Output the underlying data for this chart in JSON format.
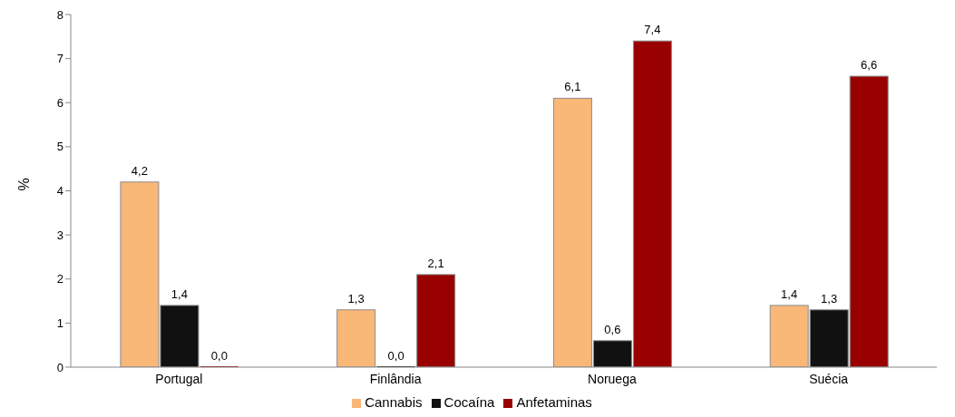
{
  "chart_data": {
    "type": "bar",
    "ylabel": "%",
    "categories": [
      "Portugal",
      "Finlândia",
      "Noruega",
      "Suécia"
    ],
    "series": [
      {
        "name": "Cannabis",
        "color": "#f9b778",
        "values": [
          4.2,
          1.3,
          6.1,
          1.4
        ],
        "value_labels": [
          "4,2",
          "1,3",
          "6,1",
          "1,4"
        ]
      },
      {
        "name": "Cocaína",
        "color": "#111111",
        "values": [
          1.4,
          0.0,
          0.6,
          1.3
        ],
        "value_labels": [
          "1,4",
          "0,0",
          "0,6",
          "1,3"
        ]
      },
      {
        "name": "Anfetaminas",
        "color": "#990000",
        "values": [
          0.0,
          2.1,
          7.4,
          6.6
        ],
        "value_labels": [
          "0,0",
          "2,1",
          "7,4",
          "6,6"
        ]
      }
    ],
    "ylim": [
      0,
      8
    ],
    "yticks": [
      0,
      1,
      2,
      3,
      4,
      5,
      6,
      7,
      8
    ],
    "grid": false,
    "legend": "bottom"
  }
}
